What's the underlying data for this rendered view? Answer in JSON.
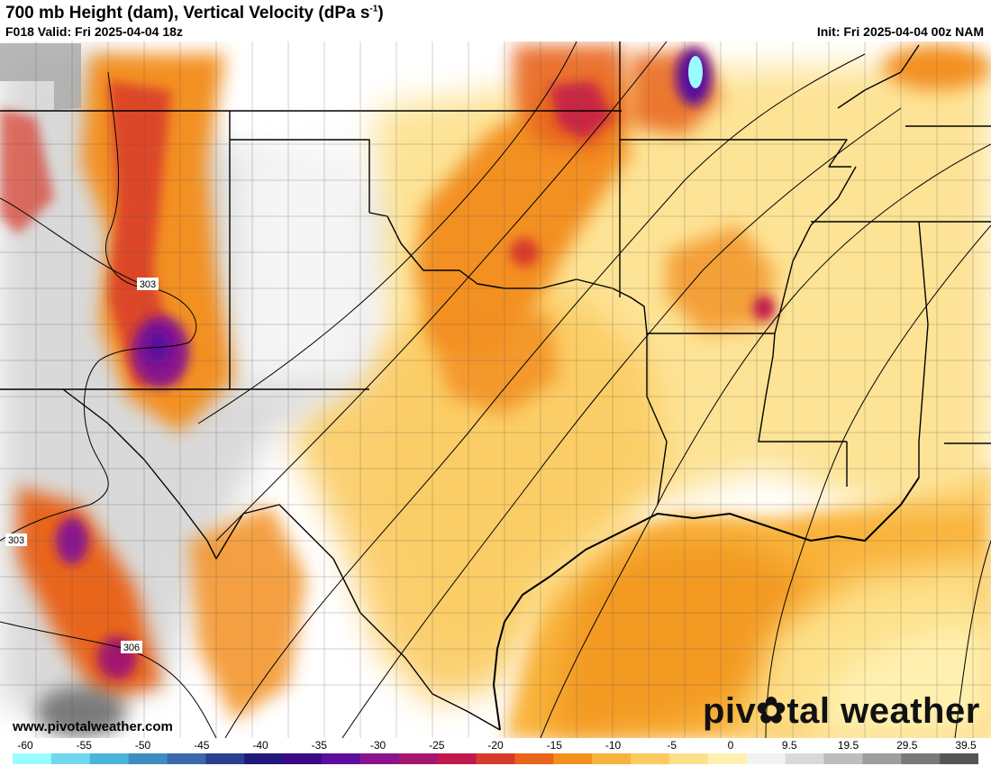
{
  "header": {
    "title_main": "700 mb Height (dam), Vertical Velocity (dPa s",
    "title_sup": "-1",
    "title_close": ")",
    "valid": "F018 Valid: Fri 2025-04-04 18z",
    "init": "Init: Fri 2025-04-04 00z NAM"
  },
  "map": {
    "contour_labels": [
      "303",
      "303",
      "306"
    ],
    "watermark_url": "www.pivotalweather.com",
    "logo_left": "piv",
    "logo_gear": "✿",
    "logo_right": "tal weather"
  },
  "colorbar": {
    "labels": [
      "-60",
      "-55",
      "-50",
      "-45",
      "-40",
      "-35",
      "-30",
      "-25",
      "-20",
      "-15",
      "-10",
      "-5",
      "0",
      "9.5",
      "19.5",
      "29.5",
      "39.5"
    ],
    "colors": [
      "#9bfcff",
      "#6fd8ee",
      "#4ab4da",
      "#3f8cc0",
      "#3a68a8",
      "#2b3f8f",
      "#221a7a",
      "#3a0a86",
      "#5c0d9c",
      "#8a148e",
      "#a4176e",
      "#c0184d",
      "#d83a2a",
      "#e8651c",
      "#f39020",
      "#f8b23e",
      "#fbcb62",
      "#fde08a",
      "#fff0b0",
      "#f2f2f2",
      "#d9d9d9",
      "#bdbdbd",
      "#9e9e9e",
      "#7a7a7a",
      "#555555"
    ],
    "accent_colors": {
      "strong_ascent": "#8a148e",
      "moderate_ascent": "#e8651c",
      "weak_ascent": "#fbcb62",
      "faint_ascent": "#fff0b0",
      "descent": "#bdbdbd",
      "boundary": "#000000"
    }
  }
}
